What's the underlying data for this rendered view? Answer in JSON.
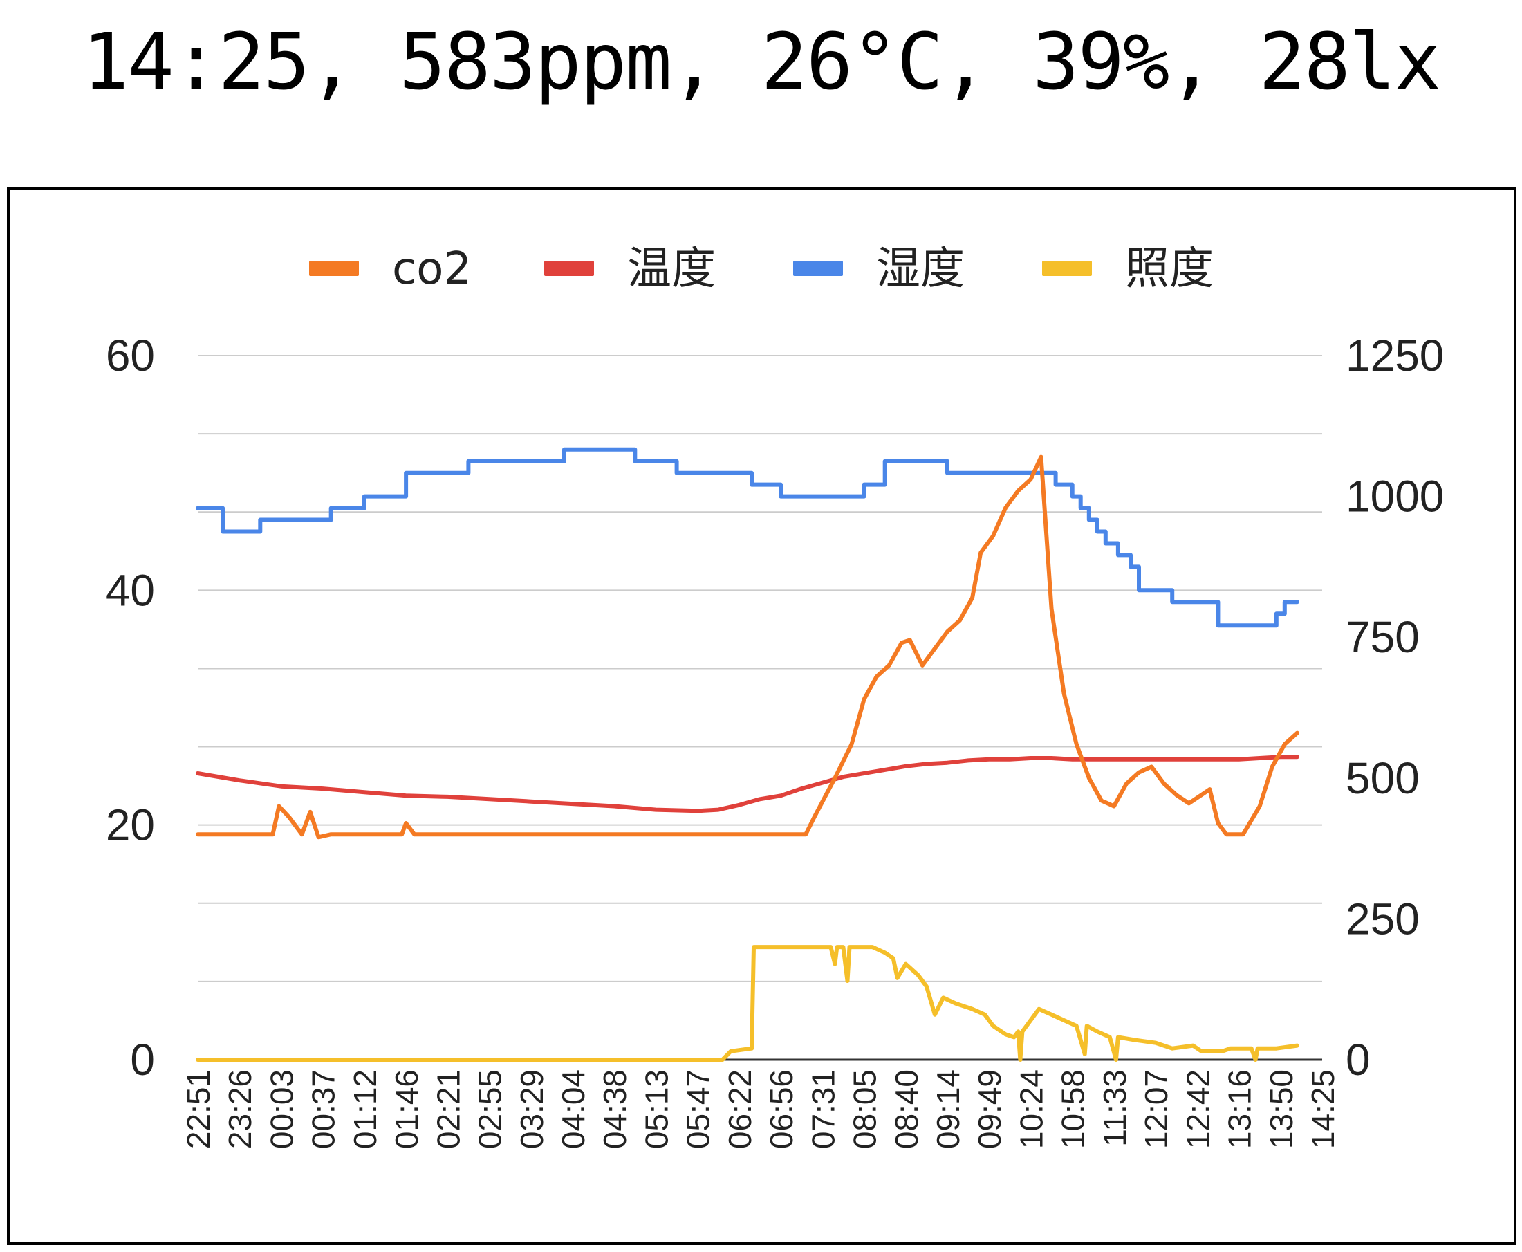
{
  "status_line": "14:25, 583ppm, 26°C, 39%, 28lx",
  "chart_data": {
    "type": "line",
    "title": "",
    "legend_position": "top",
    "x_categories": [
      "22:51",
      "23:26",
      "00:03",
      "00:37",
      "01:12",
      "01:46",
      "02:21",
      "02:55",
      "03:29",
      "04:04",
      "04:38",
      "05:13",
      "05:47",
      "06:22",
      "06:56",
      "07:31",
      "08:05",
      "08:40",
      "09:14",
      "09:49",
      "10:24",
      "10:58",
      "11:33",
      "12:07",
      "12:42",
      "13:16",
      "13:50",
      "14:25"
    ],
    "left_axis": {
      "min": 0,
      "max": 60,
      "ticks": [
        "0",
        "20",
        "40",
        "60"
      ]
    },
    "right_axis": {
      "min": 0,
      "max": 1250,
      "ticks": [
        "0",
        "250",
        "500",
        "750",
        "1000",
        "1250"
      ]
    },
    "gridlines": 9,
    "series": [
      {
        "name": "co2",
        "axis": "right",
        "color": "#f47a23",
        "step": false,
        "points": [
          [
            0,
            400
          ],
          [
            1.8,
            400
          ],
          [
            1.95,
            450
          ],
          [
            2.2,
            430
          ],
          [
            2.5,
            400
          ],
          [
            2.7,
            440
          ],
          [
            2.9,
            395
          ],
          [
            3.2,
            400
          ],
          [
            4.9,
            400
          ],
          [
            5.0,
            420
          ],
          [
            5.2,
            400
          ],
          [
            14.6,
            400
          ],
          [
            14.8,
            430
          ],
          [
            15.3,
            500
          ],
          [
            15.7,
            560
          ],
          [
            16.0,
            640
          ],
          [
            16.3,
            680
          ],
          [
            16.6,
            700
          ],
          [
            16.9,
            740
          ],
          [
            17.1,
            745
          ],
          [
            17.4,
            700
          ],
          [
            17.7,
            730
          ],
          [
            18.0,
            760
          ],
          [
            18.3,
            780
          ],
          [
            18.6,
            820
          ],
          [
            18.8,
            900
          ],
          [
            19.1,
            930
          ],
          [
            19.4,
            980
          ],
          [
            19.7,
            1010
          ],
          [
            20.0,
            1030
          ],
          [
            20.25,
            1070
          ],
          [
            20.5,
            800
          ],
          [
            20.8,
            650
          ],
          [
            21.1,
            560
          ],
          [
            21.4,
            500
          ],
          [
            21.7,
            460
          ],
          [
            22.0,
            450
          ],
          [
            22.3,
            490
          ],
          [
            22.6,
            510
          ],
          [
            22.9,
            520
          ],
          [
            23.2,
            490
          ],
          [
            23.5,
            470
          ],
          [
            23.8,
            455
          ],
          [
            24.1,
            470
          ],
          [
            24.3,
            480
          ],
          [
            24.5,
            420
          ],
          [
            24.7,
            400
          ],
          [
            25.1,
            400
          ],
          [
            25.5,
            450
          ],
          [
            25.8,
            520
          ],
          [
            26.1,
            560
          ],
          [
            26.4,
            580
          ]
        ]
      },
      {
        "name": "温度",
        "axis": "left",
        "color": "#e0413b",
        "step": false,
        "points": [
          [
            0,
            24.4
          ],
          [
            1,
            23.8
          ],
          [
            2,
            23.3
          ],
          [
            3,
            23.1
          ],
          [
            4,
            22.8
          ],
          [
            5,
            22.5
          ],
          [
            6,
            22.4
          ],
          [
            7,
            22.2
          ],
          [
            8,
            22
          ],
          [
            9,
            21.8
          ],
          [
            10,
            21.6
          ],
          [
            11,
            21.3
          ],
          [
            12,
            21.2
          ],
          [
            12.5,
            21.3
          ],
          [
            13,
            21.7
          ],
          [
            13.5,
            22.2
          ],
          [
            14,
            22.5
          ],
          [
            14.5,
            23.1
          ],
          [
            15,
            23.6
          ],
          [
            15.5,
            24.1
          ],
          [
            16,
            24.4
          ],
          [
            16.5,
            24.7
          ],
          [
            17,
            25
          ],
          [
            17.5,
            25.2
          ],
          [
            18,
            25.3
          ],
          [
            18.5,
            25.5
          ],
          [
            19,
            25.6
          ],
          [
            19.5,
            25.6
          ],
          [
            20,
            25.7
          ],
          [
            20.5,
            25.7
          ],
          [
            21,
            25.6
          ],
          [
            22,
            25.6
          ],
          [
            23,
            25.6
          ],
          [
            24,
            25.6
          ],
          [
            25,
            25.6
          ],
          [
            25.5,
            25.7
          ],
          [
            26,
            25.8
          ],
          [
            26.4,
            25.8
          ]
        ]
      },
      {
        "name": "湿度",
        "axis": "left",
        "color": "#4a86e8",
        "step": true,
        "points": [
          [
            0,
            47
          ],
          [
            0.6,
            45
          ],
          [
            1.5,
            46
          ],
          [
            3.2,
            47
          ],
          [
            4,
            48
          ],
          [
            5,
            50
          ],
          [
            6.5,
            51
          ],
          [
            8.8,
            52
          ],
          [
            10.5,
            51
          ],
          [
            11.5,
            50
          ],
          [
            13.3,
            49
          ],
          [
            14,
            48
          ],
          [
            16,
            49
          ],
          [
            16.5,
            51
          ],
          [
            18,
            50
          ],
          [
            20.6,
            49
          ],
          [
            21,
            48
          ],
          [
            21.2,
            47
          ],
          [
            21.4,
            46
          ],
          [
            21.6,
            45
          ],
          [
            21.8,
            44
          ],
          [
            22.1,
            43
          ],
          [
            22.4,
            42
          ],
          [
            22.6,
            40
          ],
          [
            23.4,
            39
          ],
          [
            24.5,
            37
          ],
          [
            25.9,
            38
          ],
          [
            26.1,
            39
          ],
          [
            26.4,
            39
          ]
        ]
      },
      {
        "name": "照度",
        "axis": "right",
        "color": "#f5bf2a",
        "step": false,
        "points": [
          [
            0,
            0
          ],
          [
            12.6,
            0
          ],
          [
            12.8,
            15
          ],
          [
            13.3,
            20
          ],
          [
            13.35,
            200
          ],
          [
            15.2,
            200
          ],
          [
            15.3,
            170
          ],
          [
            15.35,
            200
          ],
          [
            15.5,
            200
          ],
          [
            15.6,
            140
          ],
          [
            15.65,
            200
          ],
          [
            16.2,
            200
          ],
          [
            16.5,
            190
          ],
          [
            16.7,
            180
          ],
          [
            16.8,
            145
          ],
          [
            17,
            170
          ],
          [
            17.3,
            150
          ],
          [
            17.5,
            130
          ],
          [
            17.7,
            80
          ],
          [
            17.9,
            110
          ],
          [
            18.2,
            100
          ],
          [
            18.6,
            90
          ],
          [
            18.9,
            80
          ],
          [
            19.1,
            60
          ],
          [
            19.4,
            45
          ],
          [
            19.6,
            40
          ],
          [
            19.7,
            50
          ],
          [
            19.75,
            0
          ],
          [
            19.8,
            50
          ],
          [
            20.2,
            90
          ],
          [
            20.5,
            80
          ],
          [
            20.8,
            70
          ],
          [
            21.1,
            60
          ],
          [
            21.3,
            10
          ],
          [
            21.35,
            60
          ],
          [
            21.6,
            50
          ],
          [
            21.9,
            40
          ],
          [
            22.05,
            0
          ],
          [
            22.1,
            40
          ],
          [
            22.5,
            35
          ],
          [
            23,
            30
          ],
          [
            23.4,
            20
          ],
          [
            23.9,
            25
          ],
          [
            24.1,
            15
          ],
          [
            24.6,
            15
          ],
          [
            24.8,
            20
          ],
          [
            25.3,
            20
          ],
          [
            25.4,
            0
          ],
          [
            25.45,
            20
          ],
          [
            25.9,
            20
          ],
          [
            26.4,
            25
          ]
        ]
      }
    ]
  },
  "legend": [
    {
      "label": "co2",
      "color": "#f47a23"
    },
    {
      "label": "温度",
      "color": "#e0413b"
    },
    {
      "label": "湿度",
      "color": "#4a86e8"
    },
    {
      "label": "照度",
      "color": "#f5bf2a"
    }
  ]
}
